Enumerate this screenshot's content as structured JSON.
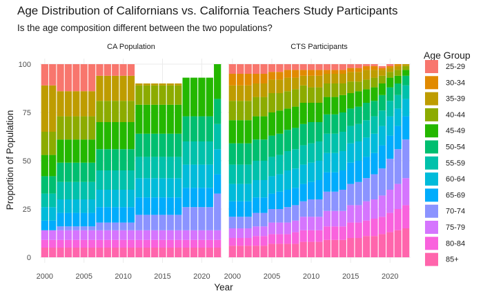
{
  "title": "Age Distribution of Californians vs. California Teachers Study Participants",
  "subtitle": "Is the age composition different between the two populations?",
  "colors": {
    "25-29": "#F8766D",
    "30-34": "#E18A00",
    "35-39": "#BE9C00",
    "40-44": "#8CAB00",
    "45-49": "#24B700",
    "50-54": "#00BE70",
    "55-59": "#00C1AB",
    "60-64": "#00BBDA",
    "65-69": "#00ACFC",
    "70-74": "#8B93FF",
    "75-79": "#D575FE",
    "80-84": "#F962DD",
    "85+": "#FF65AC"
  },
  "chart_data": {
    "type": "bar",
    "stacked": true,
    "xlabel": "Year",
    "ylabel": "Proportion of Population",
    "ylim": [
      0,
      100
    ],
    "yticks": [
      0,
      25,
      50,
      75,
      100
    ],
    "xticks": [
      2000,
      2005,
      2010,
      2015,
      2020
    ],
    "legend_title": "Age Group",
    "legend_position": "right",
    "grid": true,
    "age_groups": [
      "25-29",
      "30-34",
      "35-39",
      "40-44",
      "45-49",
      "50-54",
      "55-59",
      "60-64",
      "65-69",
      "70-74",
      "75-79",
      "80-84",
      "85+"
    ],
    "facets": [
      {
        "name": "CA Population",
        "years": [
          2000,
          2001,
          2002,
          2003,
          2004,
          2005,
          2006,
          2007,
          2008,
          2009,
          2010,
          2011,
          2012,
          2013,
          2014,
          2015,
          2016,
          2017,
          2018,
          2019,
          2020,
          2021,
          2022
        ],
        "note_values": "cumulative upper boundaries (stack from 85+ at bottom up to 25-29) in percent; groups absent in a year have zero width",
        "series": [
          {
            "name": "85+",
            "values": [
              5,
              5,
              5,
              5,
              5,
              5,
              5,
              5,
              5,
              5,
              5,
              5,
              5,
              5,
              5,
              5,
              5,
              5,
              5,
              5,
              5,
              5,
              5
            ]
          },
          {
            "name": "80-84",
            "values": [
              4,
              4,
              4,
              4,
              4,
              4,
              4,
              4,
              4,
              4,
              4,
              4,
              4,
              4,
              4,
              4,
              4,
              4,
              4,
              4,
              4,
              4,
              4
            ]
          },
          {
            "name": "75-79",
            "values": [
              5,
              5,
              5,
              5,
              5,
              5,
              5,
              5,
              5,
              5,
              5,
              5,
              5,
              5,
              5,
              5,
              5,
              5,
              5,
              5,
              5,
              5,
              5
            ]
          },
          {
            "name": "70-74",
            "values": [
              0,
              0,
              2,
              2,
              2,
              2,
              2,
              4,
              4,
              4,
              4,
              4,
              8,
              8,
              8,
              8,
              8,
              8,
              12,
              12,
              12,
              12,
              19
            ]
          },
          {
            "name": "65-69",
            "values": [
              5,
              5,
              7,
              7,
              7,
              7,
              7,
              8,
              8,
              8,
              8,
              8,
              9,
              9,
              9,
              9,
              9,
              9,
              10,
              10,
              10,
              10,
              10
            ]
          },
          {
            "name": "60-64",
            "values": [
              7,
              7,
              7,
              7,
              7,
              7,
              7,
              9,
              9,
              9,
              9,
              9,
              10,
              10,
              10,
              10,
              10,
              10,
              12,
              12,
              12,
              12,
              13
            ]
          },
          {
            "name": "55-59",
            "values": [
              7,
              7,
              9,
              9,
              9,
              9,
              9,
              10,
              10,
              10,
              10,
              10,
              11,
              11,
              11,
              11,
              11,
              11,
              12,
              12,
              12,
              12,
              13
            ]
          },
          {
            "name": "50-54",
            "values": [
              9,
              9,
              10,
              10,
              10,
              10,
              10,
              11,
              11,
              11,
              11,
              11,
              12,
              12,
              12,
              12,
              12,
              12,
              13,
              13,
              13,
              13,
              13
            ]
          },
          {
            "name": "45-49",
            "values": [
              11,
              11,
              12,
              12,
              12,
              12,
              12,
              14,
              14,
              14,
              14,
              14,
              15,
              15,
              15,
              15,
              15,
              15,
              20,
              20,
              20,
              20,
              18
            ]
          },
          {
            "name": "40-44",
            "values": [
              12,
              12,
              12,
              12,
              12,
              12,
              12,
              11,
              11,
              11,
              11,
              11,
              10,
              10,
              10,
              10,
              10,
              10,
              0,
              0,
              0,
              0,
              0
            ]
          },
          {
            "name": "35-39",
            "values": [
              24,
              24,
              13,
              13,
              13,
              13,
              13,
              13,
              13,
              13,
              13,
              13,
              1,
              1,
              1,
              1,
              1,
              1,
              0,
              0,
              0,
              0,
              0
            ]
          },
          {
            "name": "30-34",
            "values": [
              0,
              0,
              0,
              0,
              0,
              0,
              0,
              0,
              0,
              0,
              0,
              0,
              0,
              0,
              0,
              0,
              0,
              0,
              0,
              0,
              0,
              0,
              0
            ]
          },
          {
            "name": "25-29",
            "values": [
              11,
              11,
              14,
              14,
              14,
              14,
              14,
              6,
              6,
              6,
              6,
              6,
              0,
              0,
              0,
              0,
              0,
              0,
              0,
              0,
              0,
              0,
              0
            ]
          }
        ]
      },
      {
        "name": "CTS Participants",
        "years": [
          2000,
          2001,
          2002,
          2003,
          2004,
          2005,
          2006,
          2007,
          2008,
          2009,
          2010,
          2011,
          2012,
          2013,
          2014,
          2015,
          2016,
          2017,
          2018,
          2019,
          2020,
          2021,
          2022
        ],
        "series": [
          {
            "name": "85+",
            "values": [
              6,
              6,
              6,
              6,
              6,
              7,
              7,
              7,
              7,
              8,
              8,
              8,
              9,
              9,
              9,
              10,
              10,
              11,
              11,
              12,
              13,
              14,
              15
            ]
          },
          {
            "name": "80-84",
            "values": [
              4,
              4,
              4,
              5,
              5,
              5,
              5,
              5,
              6,
              6,
              6,
              6,
              7,
              7,
              7,
              8,
              8,
              8,
              9,
              9,
              10,
              11,
              12
            ]
          },
          {
            "name": "75-79",
            "values": [
              5,
              5,
              5,
              5,
              5,
              6,
              6,
              6,
              6,
              7,
              7,
              7,
              8,
              8,
              8,
              9,
              9,
              10,
              10,
              11,
              12,
              13,
              14
            ]
          },
          {
            "name": "70-74",
            "values": [
              6,
              6,
              6,
              7,
              7,
              7,
              7,
              8,
              8,
              8,
              9,
              9,
              10,
              10,
              11,
              11,
              12,
              12,
              13,
              14,
              16,
              18,
              20
            ]
          },
          {
            "name": "65-69",
            "values": [
              8,
              8,
              8,
              8,
              8,
              8,
              9,
              9,
              9,
              9,
              9,
              10,
              10,
              10,
              10,
              11,
              11,
              11,
              11,
              12,
              12,
              12,
              12
            ]
          },
          {
            "name": "60-64",
            "values": [
              9,
              9,
              9,
              9,
              9,
              9,
              9,
              10,
              10,
              10,
              10,
              10,
              10,
              10,
              10,
              10,
              10,
              10,
              10,
              10,
              10,
              9,
              9
            ]
          },
          {
            "name": "55-59",
            "values": [
              10,
              10,
              10,
              10,
              10,
              10,
              10,
              10,
              10,
              10,
              10,
              10,
              10,
              10,
              10,
              9,
              9,
              9,
              9,
              8,
              8,
              7,
              7
            ]
          },
          {
            "name": "50-54",
            "values": [
              11,
              11,
              11,
              11,
              11,
              11,
              11,
              11,
              11,
              11,
              11,
              10,
              10,
              10,
              10,
              9,
              9,
              9,
              8,
              8,
              7,
              6,
              5
            ]
          },
          {
            "name": "45-49",
            "values": [
              12,
              12,
              12,
              12,
              12,
              12,
              12,
              11,
              11,
              11,
              10,
              10,
              9,
              9,
              9,
              8,
              8,
              7,
              7,
              6,
              5,
              4,
              3
            ]
          },
          {
            "name": "40-44",
            "values": [
              10,
              10,
              10,
              10,
              10,
              10,
              9,
              9,
              9,
              9,
              8,
              8,
              7,
              7,
              6,
              6,
              5,
              5,
              5,
              4,
              3,
              3,
              2
            ]
          },
          {
            "name": "35-39",
            "values": [
              8,
              8,
              8,
              7,
              7,
              7,
              7,
              7,
              6,
              5,
              6,
              6,
              5,
              5,
              5,
              5,
              5,
              5,
              4,
              3,
              2,
              2,
              1
            ]
          },
          {
            "name": "30-34",
            "values": [
              6,
              6,
              6,
              5,
              5,
              4,
              4,
              4,
              4,
              3,
              3,
              3,
              2,
              2,
              2,
              2,
              2,
              2,
              2,
              1,
              1,
              1,
              0
            ]
          },
          {
            "name": "25-29",
            "values": [
              5,
              5,
              5,
              5,
              5,
              4,
              4,
              3,
              3,
              3,
              3,
              3,
              3,
              3,
              3,
              2,
              2,
              1,
              1,
              1,
              1,
              0,
              0
            ]
          }
        ]
      }
    ]
  }
}
